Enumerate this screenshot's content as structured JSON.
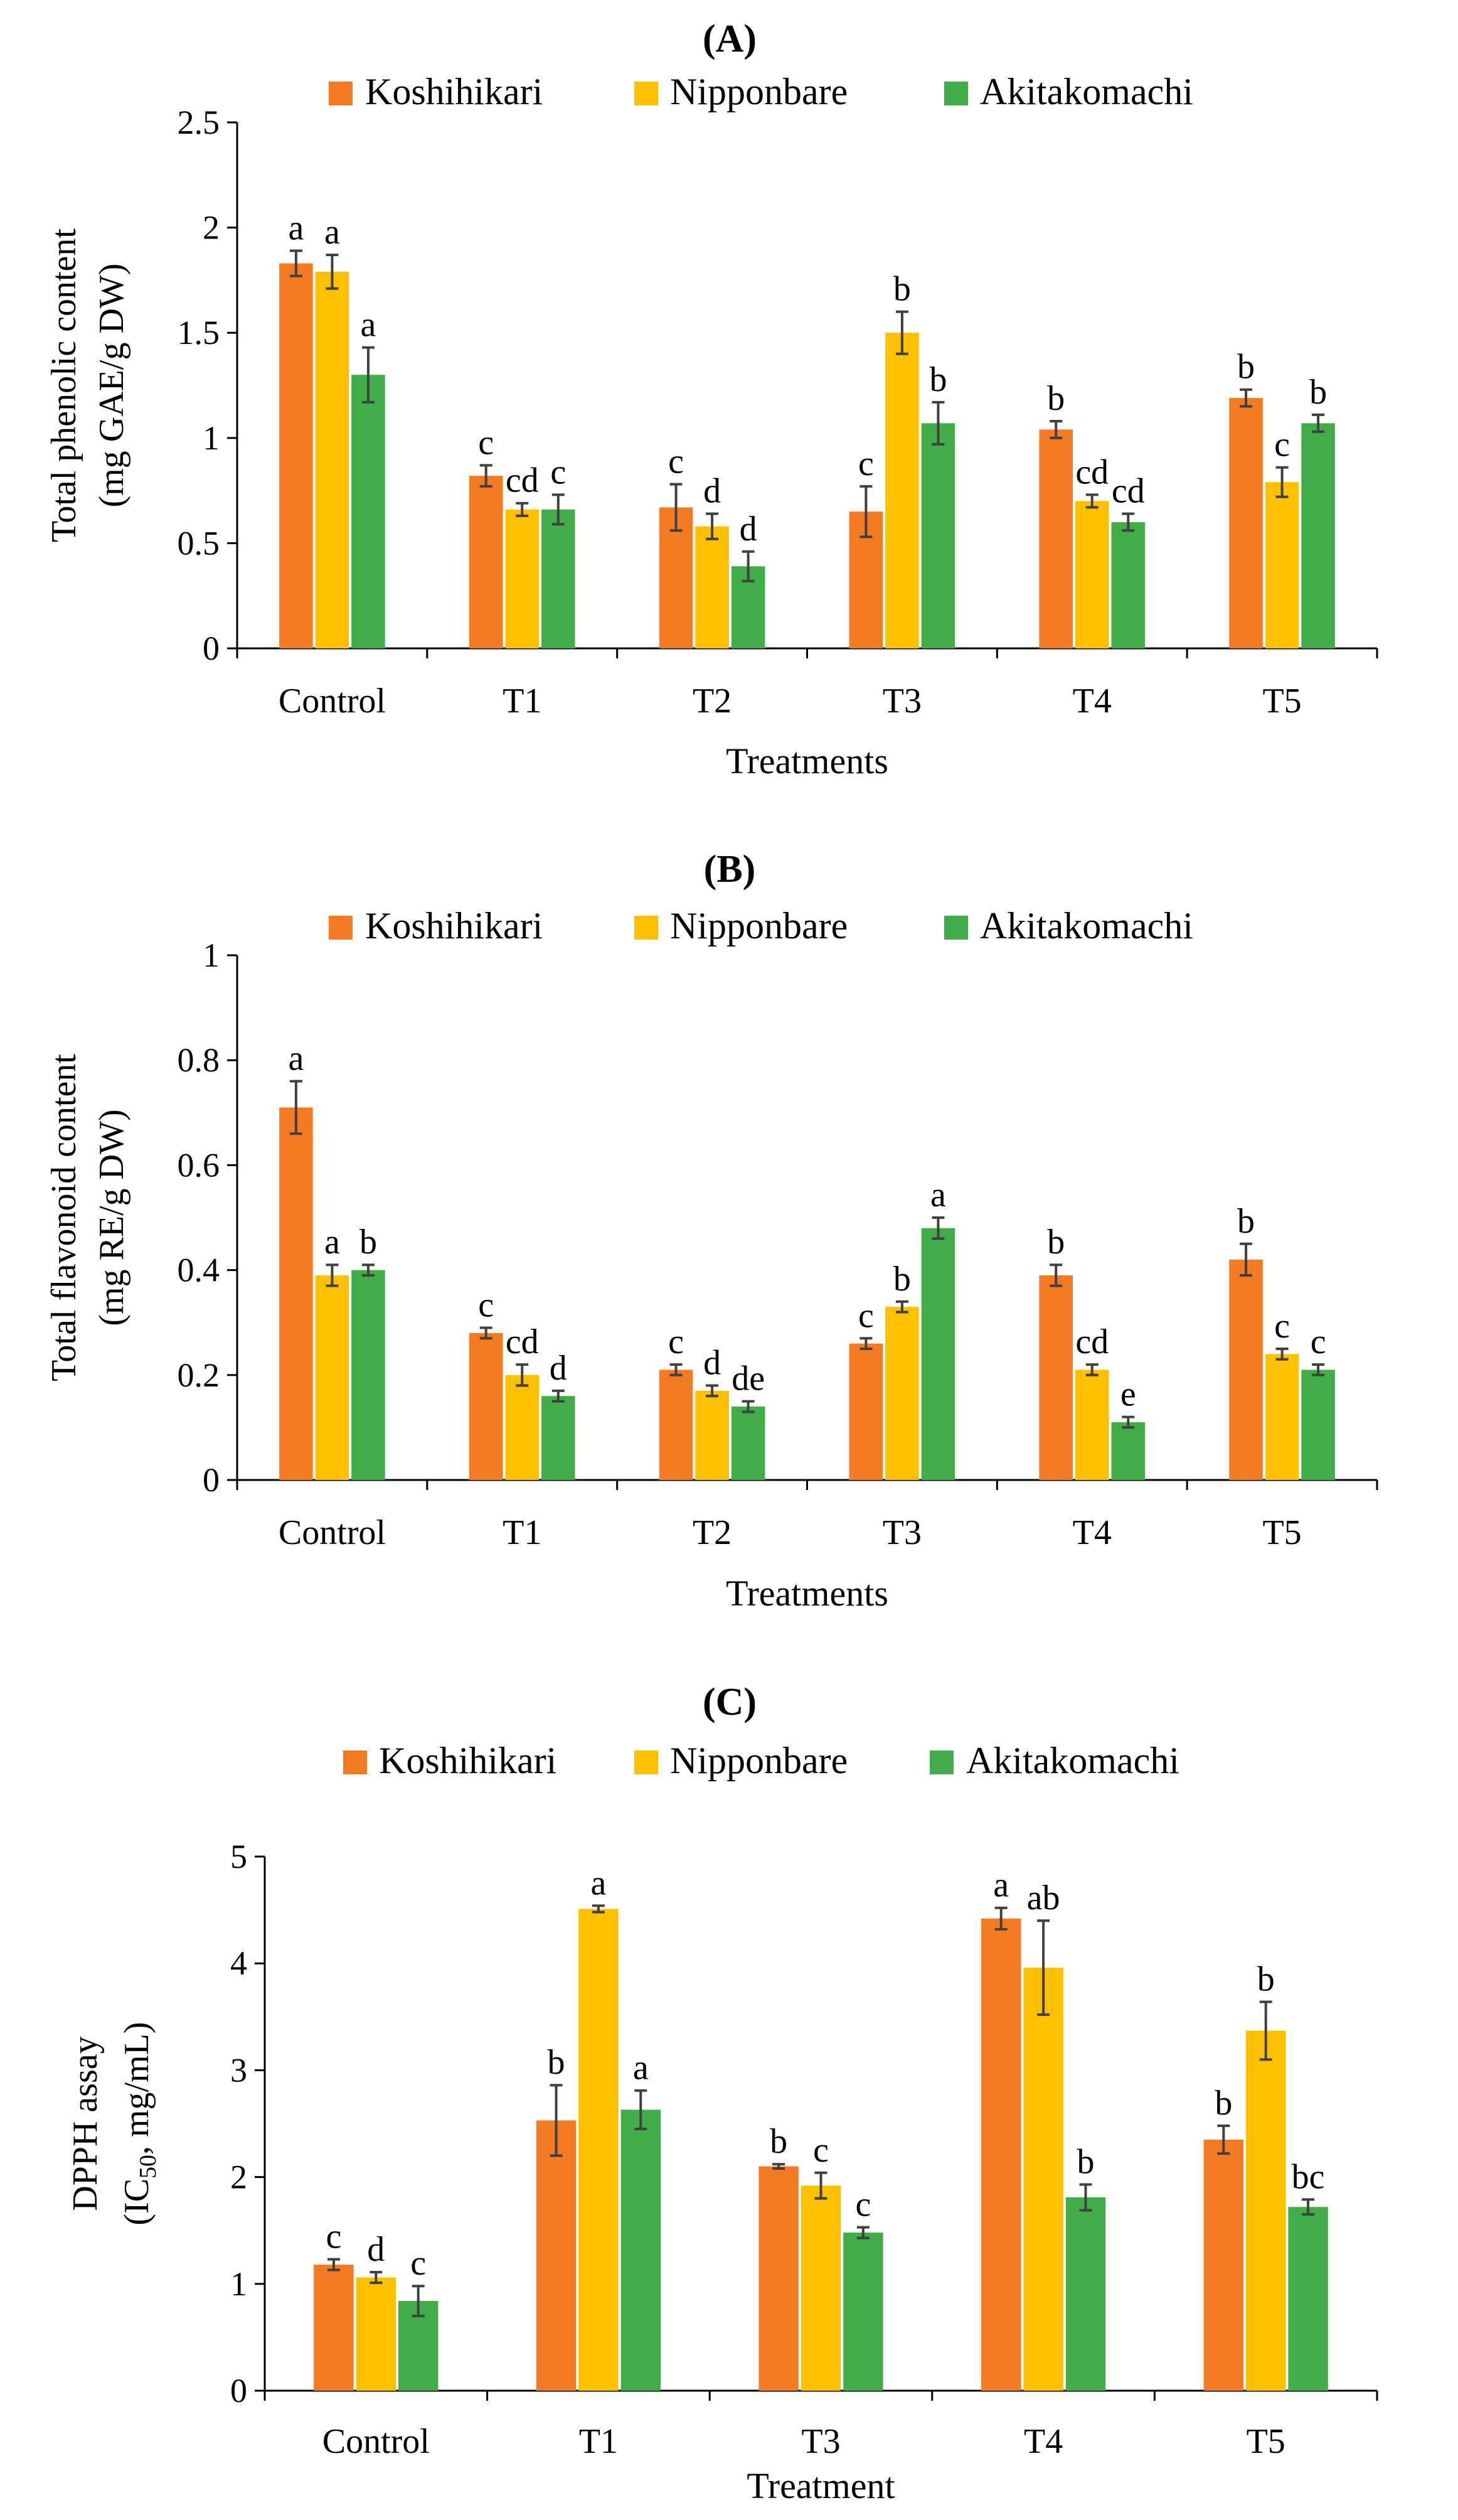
{
  "colors": {
    "koshihikari": "#F47A23",
    "nipponbare": "#FFC000",
    "akitakomachi": "#40AD48",
    "axis": "#000000",
    "error_bar": "#404040"
  },
  "chart_data": [
    {
      "type": "bar",
      "panel_label": "(A)",
      "title": "(A)",
      "xlabel": "Treatments",
      "ylabel": [
        "Total phenolic content",
        "(mg GAE/g DW)"
      ],
      "ylim": [
        0,
        2.5
      ],
      "yticks": [
        "0",
        "0.5",
        "1",
        "1.5",
        "2",
        "2.5"
      ],
      "grid": false,
      "legend_position": "top",
      "categories": [
        "Control",
        "T1",
        "T2",
        "T3",
        "T4",
        "T5"
      ],
      "series": [
        {
          "name": "Koshihikari",
          "color_key": "koshihikari",
          "values": [
            1.83,
            0.82,
            0.67,
            0.65,
            1.04,
            1.19
          ],
          "errors": [
            0.06,
            0.05,
            0.11,
            0.12,
            0.04,
            0.04
          ],
          "letters": [
            "a",
            "c",
            "c",
            "c",
            "b",
            "b"
          ]
        },
        {
          "name": "Nipponbare",
          "color_key": "nipponbare",
          "values": [
            1.79,
            0.66,
            0.58,
            1.5,
            0.7,
            0.79
          ],
          "errors": [
            0.08,
            0.03,
            0.06,
            0.1,
            0.03,
            0.07
          ],
          "letters": [
            "a",
            "cd",
            "d",
            "b",
            "cd",
            "c"
          ]
        },
        {
          "name": "Akitakomachi",
          "color_key": "akitakomachi",
          "values": [
            1.3,
            0.66,
            0.39,
            1.07,
            0.6,
            1.07
          ],
          "errors": [
            0.13,
            0.07,
            0.07,
            0.1,
            0.04,
            0.04
          ],
          "letters": [
            "a",
            "c",
            "d",
            "b",
            "cd",
            "b"
          ]
        }
      ]
    },
    {
      "type": "bar",
      "panel_label": "(B)",
      "title": "(B)",
      "xlabel": "Treatments",
      "ylabel": [
        "Total flavonoid content",
        "(mg RE/g DW)"
      ],
      "ylim": [
        0,
        1
      ],
      "yticks": [
        "0",
        "0.2",
        "0.4",
        "0.6",
        "0.8",
        "1"
      ],
      "grid": false,
      "legend_position": "top",
      "categories": [
        "Control",
        "T1",
        "T2",
        "T3",
        "T4",
        "T5"
      ],
      "series": [
        {
          "name": "Koshihikari",
          "color_key": "koshihikari",
          "values": [
            0.71,
            0.28,
            0.21,
            0.26,
            0.39,
            0.42
          ],
          "errors": [
            0.05,
            0.01,
            0.01,
            0.01,
            0.02,
            0.03
          ],
          "letters": [
            "a",
            "c",
            "c",
            "c",
            "b",
            "b"
          ]
        },
        {
          "name": "Nipponbare",
          "color_key": "nipponbare",
          "values": [
            0.39,
            0.2,
            0.17,
            0.33,
            0.21,
            0.24
          ],
          "errors": [
            0.02,
            0.02,
            0.01,
            0.01,
            0.01,
            0.01
          ],
          "letters": [
            "a",
            "cd",
            "d",
            "b",
            "cd",
            "c"
          ]
        },
        {
          "name": "Akitakomachi",
          "color_key": "akitakomachi",
          "values": [
            0.4,
            0.16,
            0.14,
            0.48,
            0.11,
            0.21
          ],
          "errors": [
            0.01,
            0.01,
            0.01,
            0.02,
            0.01,
            0.01
          ],
          "letters": [
            "b",
            "d",
            "de",
            "a",
            "e",
            "c"
          ]
        }
      ]
    },
    {
      "type": "bar",
      "panel_label": "(C)",
      "title": "(C)",
      "xlabel": "Treatment",
      "ylabel": [
        "DPPH assay",
        "(IC",
        "50",
        ", mg/mL)"
      ],
      "ylim": [
        0,
        5
      ],
      "yticks": [
        "0",
        "1",
        "2",
        "3",
        "4",
        "5"
      ],
      "grid": false,
      "legend_position": "top",
      "categories": [
        "Control",
        "T1",
        "T3",
        "T4",
        "T5"
      ],
      "series": [
        {
          "name": "Koshihikari",
          "color_key": "koshihikari",
          "values": [
            1.18,
            2.53,
            2.1,
            4.42,
            2.35
          ],
          "errors": [
            0.05,
            0.33,
            0.02,
            0.1,
            0.13
          ],
          "letters": [
            "c",
            "b",
            "b",
            "a",
            "b"
          ]
        },
        {
          "name": "Nipponbare",
          "color_key": "nipponbare",
          "values": [
            1.06,
            4.51,
            1.92,
            3.96,
            3.37
          ],
          "errors": [
            0.05,
            0.03,
            0.12,
            0.44,
            0.27
          ],
          "letters": [
            "d",
            "a",
            "c",
            "ab",
            "b"
          ]
        },
        {
          "name": "Akitakomachi",
          "color_key": "akitakomachi",
          "values": [
            0.84,
            2.63,
            1.48,
            1.81,
            1.72
          ],
          "errors": [
            0.14,
            0.18,
            0.05,
            0.12,
            0.07
          ],
          "letters": [
            "c",
            "a",
            "c",
            "b",
            "bc"
          ]
        }
      ]
    }
  ]
}
